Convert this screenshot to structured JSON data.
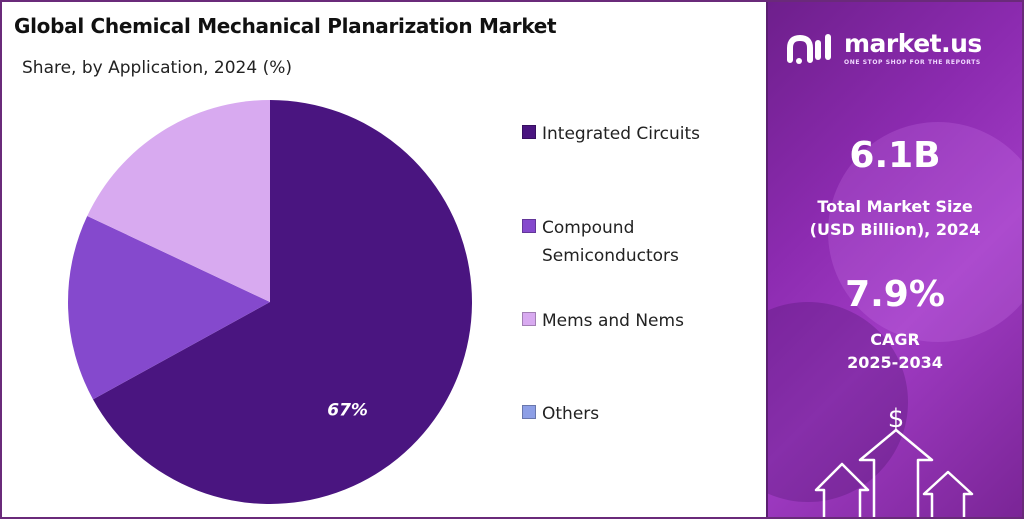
{
  "title": "Global Chemical Mechanical Planarization Market",
  "subtitle": "Share, by Application, 2024 (%)",
  "chart_data": {
    "type": "pie",
    "categories": [
      "Integrated Circuits",
      "Compound Semiconductors",
      "Mems and Nems",
      "Others"
    ],
    "values": [
      67,
      15,
      18,
      0
    ],
    "colors": [
      "#4a1580",
      "#8549cd",
      "#d8aaf0",
      "#8d9fe6"
    ],
    "data_labels": [
      "67%",
      "",
      "",
      ""
    ],
    "legend_position": "right",
    "start_angle_deg": 0,
    "direction": "clockwise"
  },
  "legend": [
    {
      "lines": [
        "Integrated Circuits"
      ],
      "color": "#4a1580"
    },
    {
      "lines": [
        "Compound",
        "Semiconductors"
      ],
      "color": "#8549cd"
    },
    {
      "lines": [
        "Mems and Nems"
      ],
      "color": "#d8aaf0"
    },
    {
      "lines": [
        "Others"
      ],
      "color": "#8d9fe6"
    }
  ],
  "sidebar": {
    "brand": "market.us",
    "tagline": "ONE STOP SHOP FOR THE REPORTS",
    "market_size_value": "6.1B",
    "market_size_label_1": "Total Market Size",
    "market_size_label_2": "(USD Billion), 2024",
    "cagr_value": "7.9%",
    "cagr_label_1": "CAGR",
    "cagr_label_2": "2025-2034",
    "currency_symbol": "$"
  }
}
